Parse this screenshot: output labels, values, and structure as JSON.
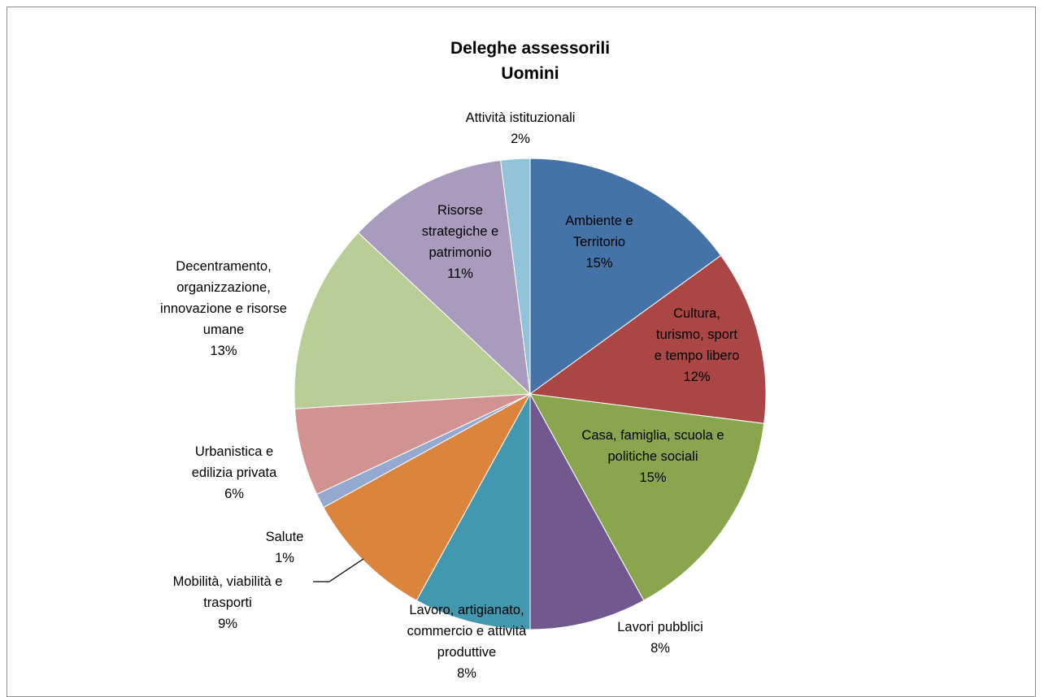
{
  "chart_data": {
    "type": "pie",
    "title": "Deleghe  assessorili\nUomini",
    "categories": [
      "Ambiente e\nTerritorio",
      "Cultura,\nturismo, sport\ne tempo libero",
      "Casa, famiglia, scuola e\npolitiche sociali",
      "Lavori pubblici",
      "Lavoro, artigianato,\ncommercio e attività\nproduttive",
      "Mobilità, viabilità e\ntrasporti",
      "Salute",
      "Urbanistica e\nedilizia privata",
      "Decentramento,\norganizzazione,\ninnovazione e risorse\numane",
      "Risorse\nstrategiche e\npatrimonio",
      "Attività istituzionali"
    ],
    "values": [
      15,
      12,
      15,
      8,
      8,
      9,
      1,
      6,
      13,
      11,
      2
    ],
    "value_labels": [
      "15%",
      "12%",
      "15%",
      "8%",
      "8%",
      "9%",
      "1%",
      "6%",
      "13%",
      "11%",
      "2%"
    ],
    "colors": [
      "#4572a7",
      "#aa4643",
      "#89a54e",
      "#71588f",
      "#4198af",
      "#db843d",
      "#93a9cf",
      "#d19392",
      "#b9cd96",
      "#a99bbd",
      "#93c3d8"
    ]
  }
}
